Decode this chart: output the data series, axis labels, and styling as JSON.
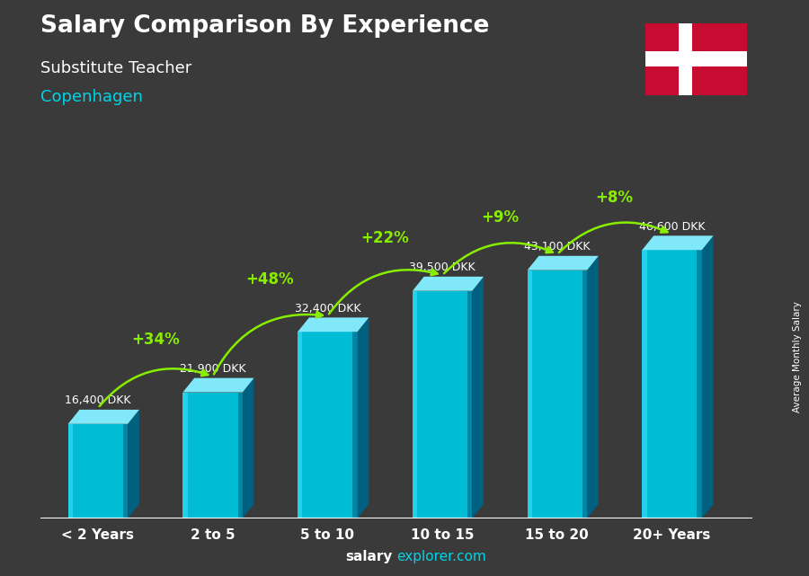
{
  "title": "Salary Comparison By Experience",
  "subtitle": "Substitute Teacher",
  "city": "Copenhagen",
  "categories": [
    "< 2 Years",
    "2 to 5",
    "5 to 10",
    "10 to 15",
    "15 to 20",
    "20+ Years"
  ],
  "values": [
    16400,
    21900,
    32400,
    39500,
    43100,
    46600
  ],
  "labels": [
    "16,400 DKK",
    "21,900 DKK",
    "32,400 DKK",
    "39,500 DKK",
    "43,100 DKK",
    "46,600 DKK"
  ],
  "pct_changes": [
    "+34%",
    "+48%",
    "+22%",
    "+9%",
    "+8%"
  ],
  "bar_front_color": "#00bcd4",
  "bar_left_color": "#29d4ec",
  "bar_right_color": "#006080",
  "bar_top_color": "#80e8f8",
  "bg_color": "#3a3a3a",
  "title_color": "#ffffff",
  "subtitle_color": "#ffffff",
  "city_color": "#00d4e8",
  "label_color": "#ffffff",
  "pct_color": "#88ee00",
  "axis_label_color": "#ffffff",
  "footer_salary_color": "#ffffff",
  "footer_explorer_color": "#00d4e8",
  "ylabel_text": "Average Monthly Salary",
  "footer_salary": "salary",
  "footer_explorer": "explorer.com",
  "max_value": 55000,
  "flag_red": "#c60c30",
  "flag_white": "#ffffff"
}
